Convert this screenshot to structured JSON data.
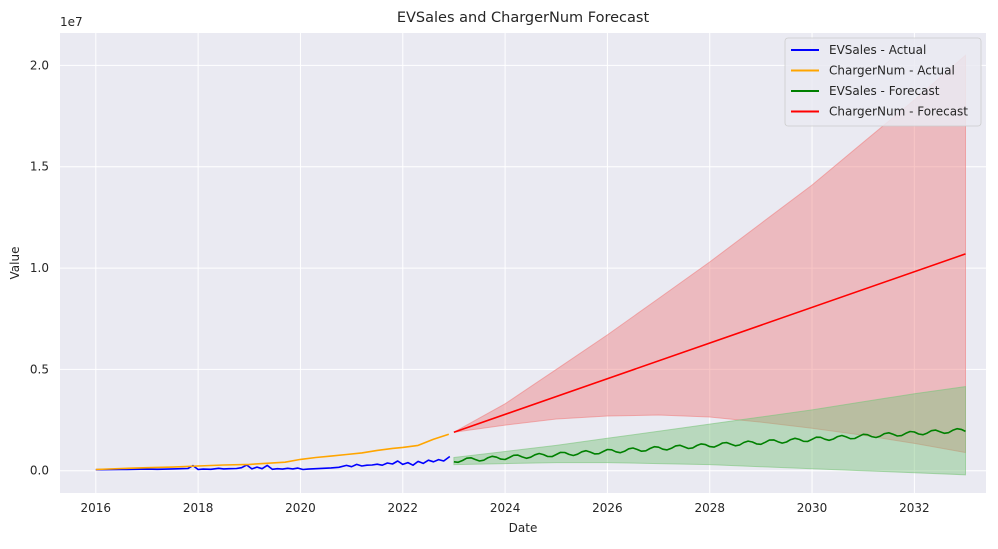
{
  "chart_data": {
    "type": "line",
    "title": "EVSales and ChargerNum Forecast",
    "xlabel": "Date",
    "ylabel": "Value",
    "y_offset_label": "1e7",
    "xlim": [
      2015.3,
      2033.4
    ],
    "ylim": [
      -1100000,
      21600000
    ],
    "grid": true,
    "legend_position": "top-right",
    "x_ticks": [
      2016,
      2018,
      2020,
      2022,
      2024,
      2026,
      2028,
      2030,
      2032
    ],
    "x_tick_labels": [
      "2016",
      "2018",
      "2020",
      "2022",
      "2024",
      "2026",
      "2028",
      "2030",
      "2032"
    ],
    "y_ticks": [
      0,
      5000000,
      10000000,
      15000000,
      20000000
    ],
    "y_tick_labels": [
      "0.0",
      "0.5",
      "1.0",
      "1.5",
      "2.0"
    ],
    "colors": {
      "background": "#eaeaf2",
      "grid": "#ffffff",
      "EVSales - Actual": "#0000ff",
      "ChargerNum - Actual": "#ffa500",
      "EVSales - Forecast": "#008000",
      "ChargerNum - Forecast": "#ff0000",
      "ChargerNum band": "#f08080",
      "EVSales band": "#7cc47c"
    },
    "series": [
      {
        "name": "EVSales - Actual",
        "x": [
          2016.0,
          2016.5,
          2017.0,
          2017.2,
          2017.5,
          2017.8,
          2017.9,
          2018.0,
          2018.1,
          2018.25,
          2018.4,
          2018.5,
          2018.6,
          2018.75,
          2018.85,
          2018.95,
          2019.05,
          2019.15,
          2019.25,
          2019.35,
          2019.45,
          2019.55,
          2019.65,
          2019.75,
          2019.85,
          2019.95,
          2020.05,
          2020.15,
          2020.3,
          2020.45,
          2020.6,
          2020.75,
          2020.9,
          2021.0,
          2021.1,
          2021.2,
          2021.3,
          2021.4,
          2021.5,
          2021.6,
          2021.7,
          2021.8,
          2021.9,
          2022.0,
          2022.1,
          2022.2,
          2022.3,
          2022.4,
          2022.5,
          2022.6,
          2022.7,
          2022.8,
          2022.92
        ],
        "y": [
          50000,
          60000,
          80000,
          70000,
          90000,
          110000,
          250000,
          60000,
          80000,
          70000,
          120000,
          90000,
          100000,
          110000,
          150000,
          280000,
          90000,
          180000,
          100000,
          260000,
          70000,
          100000,
          80000,
          120000,
          90000,
          130000,
          60000,
          80000,
          100000,
          120000,
          140000,
          170000,
          260000,
          200000,
          310000,
          230000,
          270000,
          280000,
          320000,
          270000,
          380000,
          330000,
          480000,
          310000,
          400000,
          270000,
          460000,
          360000,
          520000,
          440000,
          550000,
          480000,
          700000
        ]
      },
      {
        "name": "ChargerNum - Actual",
        "x": [
          2016.0,
          2016.5,
          2017.0,
          2017.5,
          2018.0,
          2018.5,
          2019.0,
          2019.3,
          2019.7,
          2020.0,
          2020.3,
          2020.6,
          2020.9,
          2021.2,
          2021.5,
          2021.8,
          2022.0,
          2022.3,
          2022.6,
          2022.9
        ],
        "y": [
          60000,
          110000,
          150000,
          180000,
          230000,
          280000,
          310000,
          360000,
          420000,
          560000,
          650000,
          720000,
          800000,
          880000,
          1000000,
          1100000,
          1150000,
          1250000,
          1550000,
          1800000
        ]
      },
      {
        "name": "EVSales - Forecast",
        "x": [
          2023.0,
          2024.0,
          2025.0,
          2026.0,
          2027.0,
          2028.0,
          2029.0,
          2030.0,
          2031.0,
          2032.0,
          2033.0
        ],
        "y": [
          500000,
          650000,
          800000,
          950000,
          1100000,
          1250000,
          1400000,
          1550000,
          1700000,
          1850000,
          2000000
        ],
        "seasonal_amplitude": 100000
      },
      {
        "name": "ChargerNum - Forecast",
        "x": [
          2023.0,
          2033.0
        ],
        "y": [
          1900000,
          10700000
        ]
      }
    ],
    "bands": [
      {
        "series": "ChargerNum - Forecast",
        "x": [
          2023.0,
          2024.0,
          2025.0,
          2026.0,
          2027.0,
          2028.0,
          2029.0,
          2030.0,
          2031.0,
          2032.0,
          2033.0
        ],
        "upper": [
          1900000,
          3300000,
          5000000,
          6700000,
          8500000,
          10300000,
          12200000,
          14100000,
          16200000,
          18300000,
          20500000
        ],
        "lower": [
          1900000,
          2250000,
          2550000,
          2700000,
          2750000,
          2650000,
          2400000,
          2100000,
          1750000,
          1350000,
          900000
        ]
      },
      {
        "series": "EVSales - Forecast",
        "x": [
          2023.0,
          2024.0,
          2025.0,
          2026.0,
          2027.0,
          2028.0,
          2029.0,
          2030.0,
          2031.0,
          2032.0,
          2033.0
        ],
        "upper": [
          650000,
          950000,
          1250000,
          1600000,
          1950000,
          2300000,
          2650000,
          3000000,
          3400000,
          3800000,
          4150000
        ],
        "lower": [
          300000,
          350000,
          400000,
          400000,
          350000,
          300000,
          200000,
          100000,
          0,
          -100000,
          -200000
        ]
      }
    ]
  }
}
